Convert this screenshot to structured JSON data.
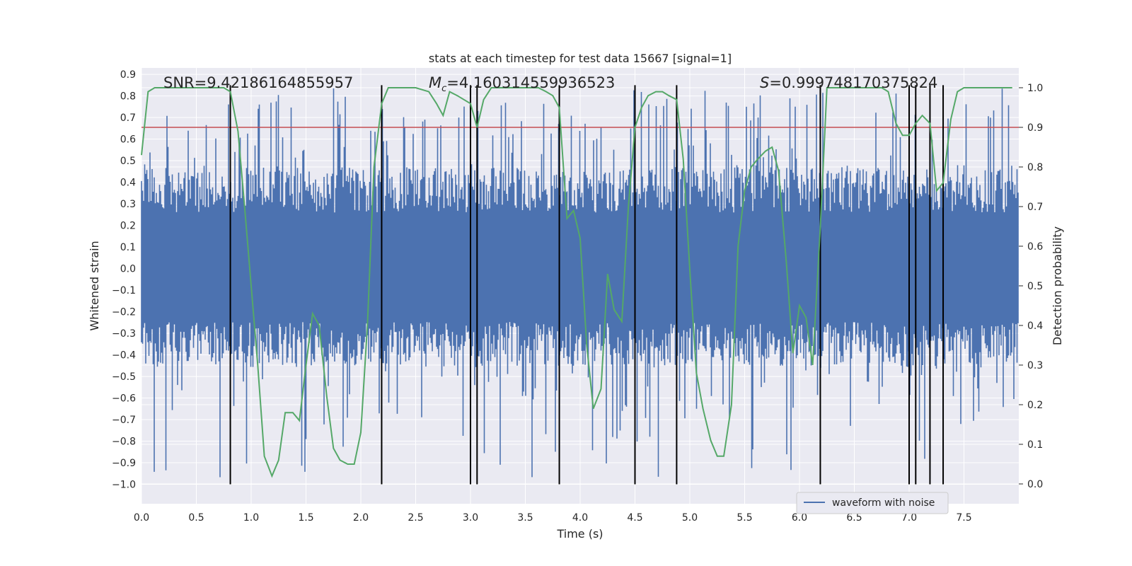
{
  "chart_data": {
    "type": "line",
    "title": "stats at each timestep for test data 15667 [signal=1]",
    "xlabel": "Time (s)",
    "ylabel_left": "Whitened strain",
    "ylabel_right": "Detection probability",
    "xlim": [
      0.0,
      8.0
    ],
    "ylim_left": [
      -1.09,
      0.93
    ],
    "ylim_right": [
      -0.05,
      1.05
    ],
    "xticks": [
      0.0,
      0.5,
      1.0,
      1.5,
      2.0,
      2.5,
      3.0,
      3.5,
      4.0,
      4.5,
      5.0,
      5.5,
      6.0,
      6.5,
      7.0,
      7.5
    ],
    "xtick_labels": [
      "0.0",
      "0.5",
      "1.0",
      "1.5",
      "2.0",
      "2.5",
      "3.0",
      "3.5",
      "4.0",
      "4.5",
      "5.0",
      "5.5",
      "6.0",
      "6.5",
      "7.0",
      "7.5"
    ],
    "yticks_left": [
      0.9,
      0.8,
      0.7,
      0.6,
      0.5,
      0.4,
      0.3,
      0.2,
      0.1,
      0.0,
      -0.1,
      -0.2,
      -0.3,
      -0.4,
      -0.5,
      -0.6,
      -0.7,
      -0.8,
      -0.9,
      -1.0
    ],
    "ytick_labels_left": [
      "0.9",
      "0.8",
      "0.7",
      "0.6",
      "0.5",
      "0.4",
      "0.3",
      "0.2",
      "0.1",
      "0.0",
      "−0.1",
      "−0.2",
      "−0.3",
      "−0.4",
      "−0.5",
      "−0.6",
      "−0.7",
      "−0.8",
      "−0.9",
      "−1.0"
    ],
    "yticks_right": [
      1.0,
      0.9,
      0.8,
      0.7,
      0.6,
      0.5,
      0.4,
      0.3,
      0.2,
      0.1,
      0.0
    ],
    "ytick_labels_right": [
      "1.0",
      "0.9",
      "0.8",
      "0.7",
      "0.6",
      "0.5",
      "0.4",
      "0.3",
      "0.2",
      "0.1",
      "0.0"
    ],
    "annotations": {
      "snr": "SNR=9.42186164855957",
      "mc_symbol": "M",
      "mc_sub": "c",
      "mc_value": "=4.160314559936523",
      "s_symbol": "S",
      "s_value": "=0.999748170375824"
    },
    "threshold": {
      "value": 0.9,
      "axis": "right",
      "color": "#c44e52"
    },
    "event_lines": [
      0.81,
      2.19,
      3.0,
      3.06,
      3.81,
      4.5,
      4.88,
      6.19,
      7.0,
      7.06,
      7.19,
      7.31
    ],
    "event_line_range": [
      -1.0,
      0.85
    ],
    "series": [
      {
        "name": "waveform with noise",
        "axis": "left",
        "color": "#4c72b0",
        "style": "dense noise",
        "core_range": [
          -0.45,
          0.47
        ],
        "spike_range": [
          -1.0,
          0.84
        ]
      },
      {
        "name": "detection probability",
        "axis": "right",
        "color": "#55a868",
        "x": [
          0.0,
          0.06,
          0.12,
          0.25,
          0.5,
          0.75,
          0.81,
          0.88,
          0.94,
          1.0,
          1.06,
          1.12,
          1.19,
          1.25,
          1.31,
          1.38,
          1.44,
          1.5,
          1.56,
          1.62,
          1.69,
          1.75,
          1.81,
          1.88,
          1.94,
          2.0,
          2.06,
          2.12,
          2.19,
          2.25,
          2.31,
          2.38,
          2.5,
          2.62,
          2.69,
          2.75,
          2.81,
          2.88,
          2.94,
          3.0,
          3.06,
          3.12,
          3.19,
          3.25,
          3.38,
          3.5,
          3.62,
          3.69,
          3.75,
          3.81,
          3.88,
          3.94,
          4.0,
          4.06,
          4.12,
          4.19,
          4.25,
          4.31,
          4.38,
          4.44,
          4.5,
          4.56,
          4.62,
          4.69,
          4.75,
          4.81,
          4.88,
          4.94,
          5.0,
          5.06,
          5.12,
          5.19,
          5.25,
          5.31,
          5.38,
          5.44,
          5.5,
          5.56,
          5.62,
          5.69,
          5.75,
          5.81,
          5.88,
          5.94,
          6.0,
          6.06,
          6.12,
          6.19,
          6.25,
          6.31,
          6.38,
          6.5,
          6.62,
          6.69,
          6.75,
          6.81,
          6.88,
          6.94,
          7.0,
          7.06,
          7.12,
          7.19,
          7.25,
          7.31,
          7.38,
          7.44,
          7.5,
          7.62,
          7.75,
          7.94
        ],
        "y": [
          0.83,
          0.99,
          1.0,
          1.0,
          1.0,
          1.0,
          0.99,
          0.89,
          0.7,
          0.5,
          0.3,
          0.07,
          0.02,
          0.06,
          0.18,
          0.18,
          0.16,
          0.3,
          0.43,
          0.4,
          0.22,
          0.09,
          0.06,
          0.05,
          0.05,
          0.13,
          0.4,
          0.8,
          0.96,
          1.0,
          1.0,
          1.0,
          1.0,
          0.99,
          0.96,
          0.93,
          0.99,
          0.98,
          0.97,
          0.96,
          0.9,
          0.97,
          1.0,
          1.0,
          1.0,
          1.0,
          1.0,
          0.99,
          0.98,
          0.95,
          0.67,
          0.69,
          0.62,
          0.35,
          0.19,
          0.24,
          0.53,
          0.44,
          0.41,
          0.7,
          0.9,
          0.95,
          0.98,
          0.99,
          0.99,
          0.98,
          0.97,
          0.82,
          0.54,
          0.28,
          0.19,
          0.11,
          0.07,
          0.07,
          0.2,
          0.6,
          0.74,
          0.8,
          0.82,
          0.84,
          0.85,
          0.79,
          0.56,
          0.33,
          0.45,
          0.42,
          0.3,
          0.65,
          1.0,
          1.0,
          1.0,
          1.0,
          1.0,
          1.0,
          1.0,
          0.99,
          0.91,
          0.88,
          0.88,
          0.91,
          0.93,
          0.91,
          0.74,
          0.76,
          0.92,
          0.99,
          1.0,
          1.0,
          1.0,
          1.0
        ]
      }
    ],
    "legend": {
      "label": "waveform with noise",
      "placement": "lower-right"
    },
    "grid": true
  }
}
